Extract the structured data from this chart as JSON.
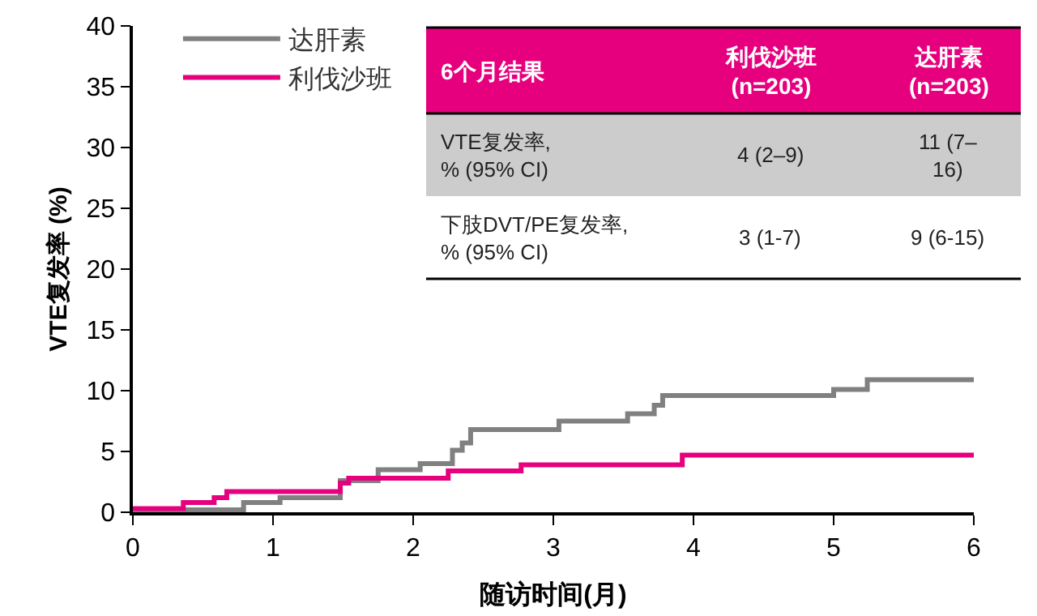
{
  "chart_data": {
    "type": "step",
    "xlabel": "随访时间(月)",
    "ylabel": "VTE复发率 (%)",
    "xlim": [
      0,
      6
    ],
    "xticks": [
      0,
      1,
      2,
      3,
      4,
      5,
      6
    ],
    "ylim": [
      0,
      40
    ],
    "yticks": [
      0,
      5,
      10,
      15,
      20,
      25,
      30,
      35,
      40
    ],
    "grid": false,
    "legend": "top left",
    "series": [
      {
        "name": "达肝素",
        "color": "#808080",
        "x": [
          0,
          0.79,
          1.05,
          1.48,
          1.75,
          2.05,
          2.28,
          2.35,
          2.41,
          3.04,
          3.53,
          3.72,
          3.78,
          5.0,
          5.24,
          6
        ],
        "values": [
          0.2,
          0.8,
          1.2,
          2.6,
          3.5,
          4.0,
          5.1,
          5.7,
          6.8,
          7.5,
          8.1,
          8.8,
          9.6,
          10.1,
          10.9,
          10.9
        ]
      },
      {
        "name": "利伐沙班",
        "color": "#e6007e",
        "x": [
          0,
          0.36,
          0.58,
          0.67,
          1.48,
          1.54,
          2.25,
          2.77,
          3.92,
          6
        ],
        "values": [
          0.3,
          0.8,
          1.2,
          1.7,
          2.4,
          2.8,
          3.4,
          3.9,
          4.7,
          4.7
        ]
      }
    ],
    "annotations": [
      "6个月结果",
      "利伐沙班\n(n=203)",
      "达肝素\n(n=203)",
      "VTE复发率,\n% (95% CI)",
      "4 (2–9)",
      "11 (7–\n16)",
      "下肢DVT/PE复发率,\n% (95% CI)",
      "3 (1-7)",
      "9 (6-15)"
    ]
  }
}
